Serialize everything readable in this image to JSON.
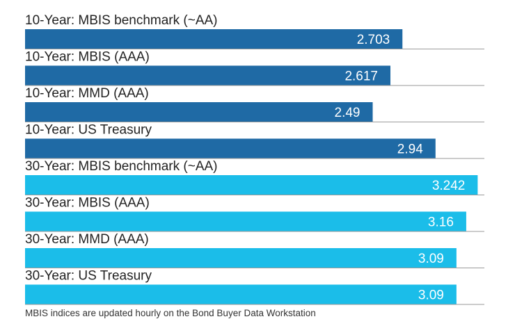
{
  "chart_data": {
    "type": "bar",
    "orientation": "horizontal",
    "categories": [
      "10-Year: MBIS benchmark (~AA)",
      "10-Year: MBIS (AAA)",
      "10-Year: MMD (AAA)",
      "10-Year: US Treasury",
      "30-Year: MBIS benchmark (~AA)",
      "30-Year: MBIS (AAA)",
      "30-Year: MMD (AAA)",
      "30-Year: US Treasury"
    ],
    "values": [
      2.703,
      2.617,
      2.49,
      2.94,
      3.242,
      3.16,
      3.09,
      3.09
    ],
    "value_labels": [
      "2.703",
      "2.617",
      "2.49",
      "2.94",
      "3.242",
      "3.16",
      "3.09",
      "3.09"
    ],
    "bar_colors": [
      "#1f6aa5",
      "#1f6aa5",
      "#1f6aa5",
      "#1f6aa5",
      "#1bbde9",
      "#1bbde9",
      "#1bbde9",
      "#1bbde9"
    ],
    "xlim": [
      0,
      3.29
    ],
    "grid": false,
    "title": "",
    "xlabel": "",
    "ylabel": ""
  },
  "footnote": "MBIS indices are updated hourly on the Bond Buyer Data Workstation",
  "colors": {
    "ten_year": "#1f6aa5",
    "thirty_year": "#1bbde9",
    "separator": "#999999",
    "text": "#222222"
  }
}
